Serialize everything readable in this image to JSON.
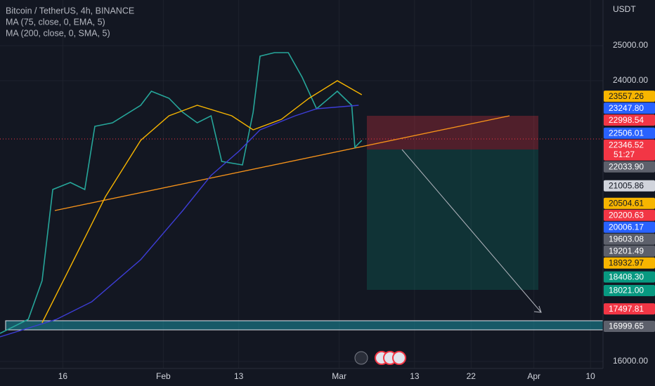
{
  "chart_data": {
    "type": "line",
    "title": "Bitcoin / TetherUS, 4h, BINANCE",
    "currency": "USDT",
    "xlim": [
      5,
      101
    ],
    "ylim": [
      15900,
      26300
    ],
    "xticks": [
      {
        "value": 15,
        "label": "16"
      },
      {
        "value": 31,
        "label": "Feb"
      },
      {
        "value": 43,
        "label": "13"
      },
      {
        "value": 59,
        "label": "Mar"
      },
      {
        "value": 71,
        "label": "13"
      },
      {
        "value": 80,
        "label": "22"
      },
      {
        "value": 90,
        "label": "Apr"
      },
      {
        "value": 99,
        "label": "10"
      }
    ],
    "yticks": [
      {
        "value": 25000,
        "label": "25000.00"
      },
      {
        "value": 24000,
        "label": "24000.00"
      },
      {
        "value": 16000,
        "label": "16000.00"
      }
    ],
    "grid": true,
    "series": [
      {
        "color": "#26a69a",
        "x": [
          5.0,
          9.5,
          11.7,
          13.4,
          16.2,
          18.5,
          20.1,
          22.9,
          27.4,
          29.1,
          31.9,
          34.1,
          36.4,
          38.6,
          40.3,
          43.6,
          45.3,
          46.4,
          48.7,
          50.9,
          53.1,
          55.4,
          58.7,
          61.0,
          61.5,
          62.6
        ],
        "values": [
          16800,
          17200,
          18300,
          20900,
          21100,
          20900,
          22700,
          22800,
          23300,
          23700,
          23500,
          23100,
          22800,
          23000,
          21700,
          21600,
          23100,
          24700,
          24800,
          24800,
          24100,
          23200,
          23700,
          23300,
          22100,
          22300
        ]
      },
      {
        "name": "MA (75, close, 0, EMA, 5)",
        "color": "#f7b500",
        "x": [
          11.7,
          16.2,
          21.8,
          27.4,
          31.9,
          36.4,
          41.9,
          45.3,
          49.8,
          54.2,
          58.7,
          62.6
        ],
        "values": [
          17100,
          18700,
          20700,
          22300,
          23000,
          23300,
          23000,
          22600,
          22900,
          23500,
          24000,
          23600
        ]
      },
      {
        "name": "MA (200, close, 0, SMA, 5)",
        "color": "#3d3dd6",
        "x": [
          5.0,
          14.0,
          19.6,
          27.4,
          34.1,
          38.6,
          43.1,
          46.4,
          52.0,
          55.4,
          62.1
        ],
        "values": [
          16700,
          17200,
          17700,
          18900,
          20300,
          21300,
          22000,
          22600,
          23000,
          23200,
          23300
        ]
      }
    ],
    "price_labels": [
      {
        "value": 23557.26,
        "label": "23557.26",
        "color": "#f7b500",
        "text_color": "#131722"
      },
      {
        "value": 23247.8,
        "label": "23247.80",
        "color": "#2962ff",
        "text_color": "#ffffff"
      },
      {
        "value": 22998.54,
        "label": "22998.54",
        "color": "#f23645",
        "text_color": "#ffffff"
      },
      {
        "value": 22506.01,
        "label": "22506.01",
        "color": "#2962ff",
        "text_color": "#ffffff"
      },
      {
        "value": 22346.52,
        "label": "22346.52",
        "color": "#f23645",
        "text_color": "#ffffff",
        "countdown": "51:27"
      },
      {
        "value": 22033.9,
        "label": "22033.90",
        "color": "#5d606b",
        "text_color": "#ffffff"
      },
      {
        "value": 21005.86,
        "label": "21005.86",
        "color": "#d1d4dc",
        "text_color": "#131722"
      },
      {
        "value": 20504.61,
        "label": "20504.61",
        "color": "#f7b500",
        "text_color": "#131722"
      },
      {
        "value": 20200.63,
        "label": "20200.63",
        "color": "#f23645",
        "text_color": "#ffffff"
      },
      {
        "value": 20006.17,
        "label": "20006.17",
        "color": "#2962ff",
        "text_color": "#ffffff"
      },
      {
        "value": 19603.08,
        "label": "19603.08",
        "color": "#5d606b",
        "text_color": "#ffffff"
      },
      {
        "value": 19201.49,
        "label": "19201.49",
        "color": "#5d606b",
        "text_color": "#ffffff"
      },
      {
        "value": 18932.97,
        "label": "18932.97",
        "color": "#f7b500",
        "text_color": "#131722"
      },
      {
        "value": 18408.3,
        "label": "18408.30",
        "color": "#089981",
        "text_color": "#ffffff"
      },
      {
        "value": 18021.0,
        "label": "18021.00",
        "color": "#089981",
        "text_color": "#ffffff"
      },
      {
        "value": 17497.81,
        "label": "17497.81",
        "color": "#f23645",
        "text_color": "#ffffff"
      },
      {
        "value": 16999.65,
        "label": "16999.65",
        "color": "#5d606b",
        "text_color": "#ffffff"
      }
    ]
  }
}
